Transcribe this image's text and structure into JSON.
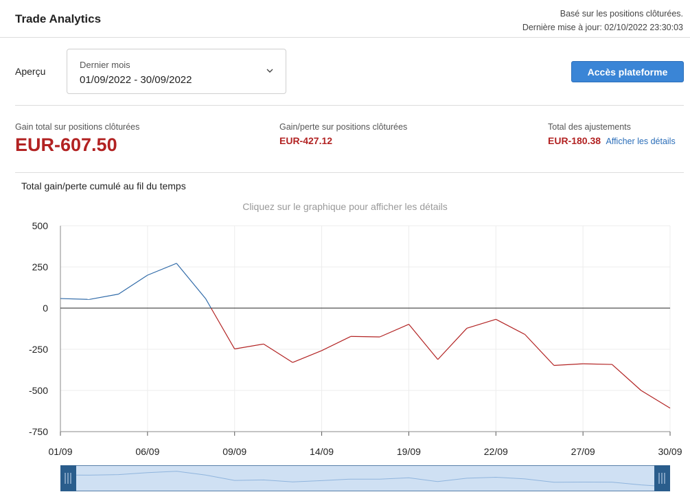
{
  "header": {
    "title": "Trade Analytics",
    "meta_line1": "Basé sur les positions clôturées.",
    "meta_line2": "Dernière mise à jour: 02/10/2022 23:30:03"
  },
  "overview": {
    "label": "Aperçu",
    "period_name": "Dernier mois",
    "period_range": "01/09/2022 - 30/09/2022",
    "platform_button": "Accès plateforme"
  },
  "stats": {
    "total_gain_label": "Gain total sur positions clôturées",
    "total_gain_value": "EUR-607.50",
    "closed_pl_label": "Gain/perte sur positions clôturées",
    "closed_pl_value": "EUR-427.12",
    "adjustments_label": "Total des ajustements",
    "adjustments_value": "EUR-180.38",
    "details_link": "Afficher les détails"
  },
  "chart_section": {
    "title": "Total gain/perte cumulé au fil du temps",
    "hint": "Cliquez sur le graphique pour afficher les détails"
  },
  "colors": {
    "positive_line": "#2f6aa8",
    "negative_line": "#b22222",
    "accent": "#3a85d6"
  },
  "chart_data": {
    "type": "line",
    "x": [
      "01/09",
      "02/09",
      "05/09",
      "06/09",
      "07/09",
      "08/09",
      "09/09",
      "12/09",
      "13/09",
      "14/09",
      "15/09",
      "16/09",
      "19/09",
      "20/09",
      "21/09",
      "22/09",
      "23/09",
      "26/09",
      "27/09",
      "28/09",
      "29/09",
      "30/09"
    ],
    "x_tick_labels": [
      "01/09",
      "06/09",
      "09/09",
      "14/09",
      "19/09",
      "22/09",
      "27/09",
      "30/09"
    ],
    "series": [
      {
        "values": [
          58,
          53,
          85,
          200,
          272,
          58,
          -248,
          -218,
          -330,
          -258,
          -172,
          -175,
          -98,
          -312,
          -122,
          -68,
          -160,
          -348,
          -338,
          -342,
          -500,
          -607.5
        ]
      }
    ],
    "ylim": [
      -750,
      500
    ],
    "yticks": [
      500,
      250,
      0,
      -250,
      -500,
      -750
    ],
    "grid": true,
    "legend": "none"
  }
}
